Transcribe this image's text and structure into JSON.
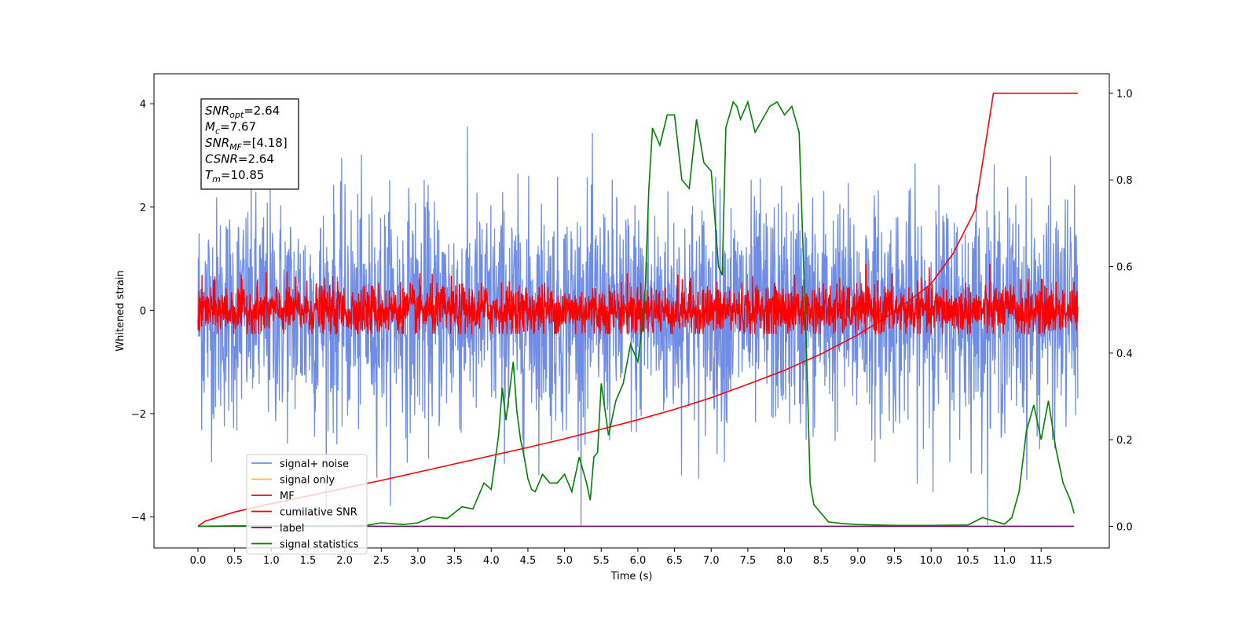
{
  "chart_data": {
    "type": "line",
    "xlabel": "Time (s)",
    "ylabel": "Whitened strain",
    "xlim": [
      -0.6,
      12.43
    ],
    "ylim": [
      -4.6,
      4.58
    ],
    "y2lim": [
      -0.05,
      1.045
    ],
    "x_ticks": [
      "0.0",
      "0.5",
      "1.0",
      "1.5",
      "2.0",
      "2.5",
      "3.0",
      "3.5",
      "4.0",
      "4.5",
      "5.0",
      "5.5",
      "6.0",
      "6.5",
      "7.0",
      "7.5",
      "8.0",
      "8.5",
      "9.0",
      "9.5",
      "10.0",
      "10.5",
      "11.0",
      "11.5"
    ],
    "y_ticks": [
      "4",
      "2",
      "0",
      "−2",
      "−4"
    ],
    "y2_ticks": [
      "1.0",
      "0.8",
      "0.6",
      "0.4",
      "0.2",
      "0.0"
    ],
    "annotation": {
      "snr_opt": {
        "symbol": "SNR",
        "sub": "opt",
        "value": "=2.64"
      },
      "mc": {
        "symbol": "M",
        "sub": "c",
        "value": "=7.67"
      },
      "snr_mf": {
        "symbol": "SNR",
        "sub": "MF",
        "value": "=[4.18]"
      },
      "csnr": {
        "symbol": "CSNR",
        "sub": "",
        "value": "=2.64"
      },
      "tm": {
        "symbol": "T",
        "sub": "m",
        "value": "=10.85"
      }
    },
    "legend_position": "lower-left",
    "series": [
      {
        "name": "signal+ noise",
        "color": "#6f8de6",
        "axis": "left",
        "noise_std": 1.1,
        "offset": -0.05,
        "x_range": [
          0,
          12.0
        ]
      },
      {
        "name": "signal only",
        "color": "#f5c342",
        "axis": "left",
        "values": []
      },
      {
        "name": "MF",
        "color": "#ff0000",
        "axis": "left",
        "noise_std": 0.25,
        "offset": 0.0,
        "x_range": [
          0,
          12.0
        ]
      },
      {
        "name": "cumilative SNR",
        "color": "#ff0000",
        "axis": "right",
        "x": [
          0,
          0.1,
          0.5,
          1.0,
          1.5,
          2.0,
          2.5,
          3.0,
          3.5,
          4.0,
          4.5,
          5.0,
          5.5,
          6.0,
          6.5,
          7.0,
          7.5,
          8.0,
          8.5,
          9.0,
          9.5,
          10.0,
          10.3,
          10.6,
          10.85,
          12.0
        ],
        "y": [
          0.0,
          0.012,
          0.033,
          0.052,
          0.07,
          0.088,
          0.106,
          0.125,
          0.144,
          0.163,
          0.182,
          0.202,
          0.224,
          0.246,
          0.27,
          0.297,
          0.328,
          0.36,
          0.398,
          0.442,
          0.495,
          0.56,
          0.63,
          0.73,
          1.0,
          1.0
        ]
      },
      {
        "name": "label",
        "color": "#6a0d6a",
        "axis": "right",
        "x": [
          0,
          11.95
        ],
        "y": [
          0.0,
          0.0
        ]
      },
      {
        "name": "signal statistics",
        "color": "#008000",
        "axis": "right",
        "x": [
          0.0,
          0.5,
          1.0,
          1.5,
          2.0,
          2.3,
          2.5,
          2.8,
          3.0,
          3.2,
          3.4,
          3.6,
          3.75,
          3.9,
          4.0,
          4.1,
          4.15,
          4.2,
          4.3,
          4.35,
          4.4,
          4.45,
          4.5,
          4.55,
          4.6,
          4.7,
          4.8,
          4.9,
          5.0,
          5.05,
          5.1,
          5.2,
          5.3,
          5.35,
          5.4,
          5.45,
          5.5,
          5.6,
          5.7,
          5.8,
          5.9,
          6.0,
          6.05,
          6.1,
          6.15,
          6.2,
          6.3,
          6.4,
          6.5,
          6.6,
          6.7,
          6.8,
          6.9,
          7.0,
          7.1,
          7.15,
          7.2,
          7.3,
          7.35,
          7.4,
          7.5,
          7.6,
          7.7,
          7.8,
          7.9,
          8.0,
          8.1,
          8.2,
          8.3,
          8.35,
          8.4,
          8.5,
          8.6,
          8.7,
          8.8,
          9.0,
          9.5,
          10.0,
          10.5,
          10.7,
          10.9,
          11.0,
          11.1,
          11.2,
          11.3,
          11.4,
          11.5,
          11.6,
          11.7,
          11.8,
          11.9,
          11.95
        ],
        "y": [
          0.0,
          0.001,
          0.001,
          0.001,
          0.001,
          0.002,
          0.008,
          0.004,
          0.008,
          0.022,
          0.018,
          0.045,
          0.04,
          0.1,
          0.085,
          0.21,
          0.32,
          0.245,
          0.38,
          0.265,
          0.2,
          0.16,
          0.11,
          0.085,
          0.08,
          0.12,
          0.1,
          0.1,
          0.12,
          0.1,
          0.08,
          0.16,
          0.1,
          0.06,
          0.16,
          0.17,
          0.33,
          0.21,
          0.29,
          0.33,
          0.42,
          0.38,
          0.45,
          0.55,
          0.78,
          0.92,
          0.88,
          0.95,
          0.95,
          0.8,
          0.78,
          0.94,
          0.84,
          0.82,
          0.6,
          0.58,
          0.92,
          0.98,
          0.97,
          0.94,
          0.98,
          0.91,
          0.94,
          0.97,
          0.98,
          0.95,
          0.97,
          0.91,
          0.4,
          0.1,
          0.05,
          0.03,
          0.01,
          0.008,
          0.006,
          0.004,
          0.002,
          0.002,
          0.003,
          0.02,
          0.01,
          0.005,
          0.02,
          0.08,
          0.22,
          0.28,
          0.2,
          0.29,
          0.18,
          0.1,
          0.06,
          0.03
        ]
      }
    ]
  }
}
